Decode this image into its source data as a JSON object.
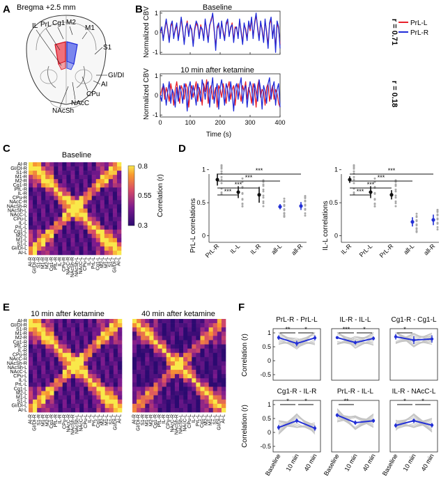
{
  "panel_letters": [
    "A",
    "B",
    "C",
    "D",
    "E",
    "F"
  ],
  "panelA": {
    "title": "Bregma +2.5 mm",
    "labels": [
      "IL",
      "PrL",
      "Cg1",
      "M2",
      "M1",
      "S1",
      "GI/DI",
      "AI",
      "CPu",
      "NAcC",
      "NAcSh"
    ]
  },
  "colors": {
    "left": "#e8202a",
    "right": "#1f2ad8",
    "gray": "#a9a9a9",
    "grayLine": "#c4c4c4",
    "black": "#111111",
    "blueMean": "#2330d6"
  },
  "chart_data": [
    {
      "id": "B-baseline",
      "type": "line",
      "title": "Baseline",
      "xlabel": "Time (s)",
      "ylabel": "Normalized CBV",
      "xlim": [
        0,
        400
      ],
      "ylim": [
        -1.1,
        1.1
      ],
      "xticks": [
        "0",
        "100",
        "200",
        "300",
        "400"
      ],
      "yticks": [
        "-1",
        "0",
        "1"
      ],
      "annotation": "r = 0.71",
      "legend": [
        "PrL-L",
        "PrL-R"
      ],
      "x_step": 5,
      "series": [
        {
          "name": "PrL-L",
          "values": [
            0.0,
            0.2,
            -0.3,
            0.1,
            0.6,
            0.2,
            -0.4,
            0.3,
            0.5,
            -0.2,
            0.1,
            0.4,
            -0.3,
            0.2,
            0.7,
            0.1,
            -0.5,
            0.2,
            0.6,
            -0.1,
            0.3,
            0.2,
            -0.6,
            0.1,
            0.5,
            0.3,
            -0.2,
            0.4,
            0.1,
            -0.3,
            0.6,
            0.2,
            -0.4,
            0.3,
            0.7,
            0.9,
            0.1,
            -0.7,
            0.2,
            0.4,
            -0.2,
            0.5,
            0.1,
            -0.3,
            0.4,
            0.6,
            -0.1,
            0.2,
            0.5,
            -0.4,
            0.3,
            0.2,
            -0.2,
            0.6,
            0.1,
            -0.5,
            0.4,
            0.2,
            -0.3,
            0.5,
            0.1,
            0.7,
            -0.2,
            0.4,
            0.9,
            0.3,
            -0.3,
            0.5,
            0.2,
            -0.4,
            0.6,
            0.1,
            -0.6,
            0.4,
            0.7,
            -0.2,
            0.3,
            -0.8,
            0.5,
            0.2,
            -0.6
          ]
        },
        {
          "name": "PrL-R",
          "values": [
            0.0,
            0.3,
            -0.4,
            0.2,
            0.7,
            0.1,
            -0.5,
            0.4,
            0.6,
            -0.3,
            0.2,
            0.5,
            -0.4,
            0.1,
            0.8,
            0.2,
            -0.6,
            0.3,
            0.5,
            -0.2,
            0.4,
            0.1,
            -0.7,
            0.2,
            0.6,
            0.4,
            -0.3,
            0.3,
            0.2,
            -0.4,
            0.7,
            0.1,
            -0.5,
            0.4,
            0.6,
            1.0,
            0.2,
            -0.9,
            0.3,
            0.5,
            -0.3,
            0.6,
            0.0,
            -0.4,
            0.5,
            0.7,
            -0.2,
            0.3,
            0.4,
            -0.5,
            0.2,
            0.3,
            -0.3,
            0.7,
            0.0,
            -0.6,
            0.5,
            0.1,
            -0.4,
            0.6,
            0.2,
            0.8,
            -0.3,
            0.5,
            1.0,
            0.2,
            -0.4,
            0.6,
            0.1,
            -0.5,
            0.7,
            0.0,
            -0.8,
            0.5,
            0.8,
            -0.3,
            0.4,
            -1.0,
            0.6,
            0.3,
            -0.8
          ]
        }
      ]
    },
    {
      "id": "B-ketamine",
      "type": "line",
      "title": "10 min after ketamine",
      "xlabel": "Time (s)",
      "ylabel": "Normalized CBV",
      "xlim": [
        0,
        400
      ],
      "ylim": [
        -1.1,
        1.1
      ],
      "xticks": [
        "0",
        "100",
        "200",
        "300",
        "400"
      ],
      "yticks": [
        "-1",
        "0",
        "1"
      ],
      "annotation": "r = 0.18",
      "x_step": 5,
      "series": [
        {
          "name": "PrL-L",
          "values": [
            0.0,
            0.3,
            0.5,
            -0.2,
            0.4,
            0.1,
            -0.3,
            0.6,
            0.2,
            -0.5,
            0.3,
            0.7,
            0.1,
            -0.4,
            0.5,
            0.3,
            -0.2,
            0.6,
            0.4,
            -0.6,
            0.2,
            0.5,
            -0.1,
            0.3,
            0.7,
            -0.3,
            0.4,
            0.1,
            -0.5,
            0.6,
            0.2,
            0.8,
            -0.4,
            0.3,
            0.5,
            -0.2,
            0.1,
            0.4,
            -0.6,
            0.5,
            0.3,
            -0.1,
            0.6,
            0.2,
            -0.4,
            0.4,
            0.7,
            -0.2,
            0.3,
            0.5,
            -0.5,
            0.2,
            0.6,
            0.1,
            -0.3,
            0.5,
            0.2,
            0.7,
            -0.2,
            0.4,
            0.1,
            -0.4,
            0.6,
            0.3,
            -0.6,
            0.5,
            0.8,
            -0.1,
            0.3,
            0.2,
            -0.5,
            0.4,
            0.6,
            -0.3,
            0.2,
            0.5,
            -0.2,
            0.3,
            0.1,
            -0.4,
            -0.6
          ]
        },
        {
          "name": "PrL-R",
          "values": [
            0.0,
            -0.3,
            0.6,
            0.3,
            -0.5,
            0.2,
            0.7,
            -0.4,
            0.3,
            0.1,
            -0.6,
            0.4,
            -0.3,
            0.5,
            0.2,
            -0.4,
            0.6,
            0.3,
            -0.8,
            0.4,
            0.7,
            -0.2,
            0.5,
            0.1,
            -0.5,
            0.6,
            0.2,
            -0.3,
            0.8,
            0.4,
            -0.2,
            0.5,
            0.7,
            -0.6,
            0.3,
            0.9,
            -0.4,
            0.2,
            0.6,
            -0.7,
            0.4,
            0.8,
            0.2,
            -0.5,
            0.6,
            0.3,
            -0.3,
            0.7,
            0.1,
            -0.8,
            0.4,
            0.6,
            -0.2,
            0.5,
            0.9,
            -0.4,
            0.3,
            0.5,
            -0.6,
            0.2,
            0.7,
            0.4,
            -0.5,
            0.6,
            0.2,
            -0.3,
            0.8,
            0.3,
            -0.7,
            0.5,
            0.2,
            -0.4,
            0.6,
            0.9,
            -0.2,
            0.4,
            0.7,
            -0.5,
            0.3,
            0.6,
            -0.6
          ]
        }
      ]
    },
    {
      "id": "C",
      "type": "heatmap",
      "title": "Baseline",
      "rows": [
        "AI-R",
        "GI/DI-R",
        "S1-R",
        "M1-R",
        "M2-R",
        "Cg1-R",
        "PrL-R",
        "IL-R",
        "CPu-R",
        "NAcC-R",
        "NAcSh-R",
        "NAcSh-L",
        "NAcC-L",
        "CPu-L",
        "IL-L",
        "PrL-L",
        "Cg1-L",
        "M2-L",
        "M1-L",
        "S1-L",
        "GI/DI-L",
        "AI-L"
      ],
      "colorbar": {
        "label": "Correlation (r)",
        "ticks": [
          "0.8",
          "0.55",
          "0.3"
        ],
        "range": [
          0.3,
          0.8
        ]
      }
    },
    {
      "id": "E1",
      "type": "heatmap",
      "title": "10 min after ketamine",
      "rows": [
        "AI-R",
        "GI/DI-R",
        "S1-R",
        "M1-R",
        "M2-R",
        "Cg1-R",
        "PrL-R",
        "IL-R",
        "CPu-R",
        "NAcC-R",
        "NAcSh-R",
        "NAcSh-L",
        "NAcC-L",
        "CPu-L",
        "IL-L",
        "PrL-L",
        "Cg1-L",
        "M2-L",
        "M1-L",
        "S1-L",
        "GI/DI-L",
        "AI-L"
      ]
    },
    {
      "id": "E2",
      "type": "heatmap",
      "title": "40 min after ketamine",
      "rows": [
        "AI-R",
        "GI/DI-R",
        "S1-R",
        "M1-R",
        "M2-R",
        "Cg1-R",
        "PrL-R",
        "IL-R",
        "CPu-R",
        "NAcC-R",
        "NAcSh-R",
        "NAcSh-L",
        "NAcC-L",
        "CPu-L",
        "IL-L",
        "PrL-L",
        "Cg1-L",
        "M2-L",
        "M1-L",
        "S1-L",
        "GI/DI-L",
        "AI-L"
      ]
    },
    {
      "id": "D1",
      "type": "scatter",
      "ylabel": "PrL-L correlations",
      "categories": [
        "PrL-R",
        "IL-L",
        "IL-R",
        "all-L",
        "all-R"
      ],
      "means": [
        0.85,
        0.66,
        0.62,
        0.44,
        0.45
      ],
      "errors": [
        0.09,
        0.09,
        0.12,
        0.04,
        0.06
      ],
      "mean_colors": [
        "black",
        "black",
        "black",
        "blue",
        "blue"
      ],
      "ylim": [
        -0.1,
        1.25
      ],
      "yticks": [
        "0",
        "0.5",
        "1"
      ],
      "significance": [
        "***",
        "***",
        "***",
        "***"
      ]
    },
    {
      "id": "D2",
      "type": "scatter",
      "ylabel": "IL-L correlations",
      "categories": [
        "IL-R",
        "PrL-L",
        "PrL-R",
        "all-L",
        "all-R"
      ],
      "means": [
        0.85,
        0.66,
        0.62,
        0.21,
        0.24
      ],
      "errors": [
        0.05,
        0.09,
        0.07,
        0.07,
        0.08
      ],
      "mean_colors": [
        "black",
        "black",
        "black",
        "blue",
        "blue"
      ],
      "ylim": [
        -0.1,
        1.25
      ],
      "yticks": [
        "0",
        "0.5",
        "1"
      ],
      "significance": [
        "***",
        "***",
        "***",
        "***"
      ]
    },
    {
      "id": "F",
      "type": "line",
      "ylabel": "Correlation (r)",
      "categories": [
        "Baseline",
        "10 min",
        "40 min"
      ],
      "ylim": [
        -0.7,
        1.15
      ],
      "yticks": [
        "1",
        "0.5",
        "0",
        "-0.5"
      ],
      "panels": [
        {
          "title": "PrL-R - PrL-L",
          "means": [
            0.83,
            0.62,
            0.82
          ],
          "errors": [
            0.08,
            0.1,
            0.09
          ],
          "sig": [
            "**",
            "*"
          ]
        },
        {
          "title": "IL-R - IL-L",
          "means": [
            0.83,
            0.65,
            0.8
          ],
          "errors": [
            0.05,
            0.07,
            0.07
          ],
          "sig": [
            "***",
            "*"
          ]
        },
        {
          "title": "Cg1-R - Cg1-L",
          "means": [
            0.86,
            0.74,
            0.78
          ],
          "errors": [
            0.1,
            0.14,
            0.13
          ],
          "sig": [
            "*"
          ]
        },
        {
          "title": "Cg1-R - IL-R",
          "means": [
            0.18,
            0.42,
            0.15
          ],
          "errors": [
            0.09,
            0.08,
            0.09
          ],
          "sig": [
            "*",
            "*"
          ]
        },
        {
          "title": "PrL-R - IL-L",
          "means": [
            0.62,
            0.35,
            0.42
          ],
          "errors": [
            0.07,
            0.08,
            0.07
          ],
          "sig": [
            "**"
          ]
        },
        {
          "title": "IL-R - NAcC-L",
          "means": [
            0.25,
            0.42,
            0.26
          ],
          "errors": [
            0.08,
            0.08,
            0.08
          ],
          "sig": [
            "*",
            "*"
          ]
        }
      ]
    }
  ]
}
